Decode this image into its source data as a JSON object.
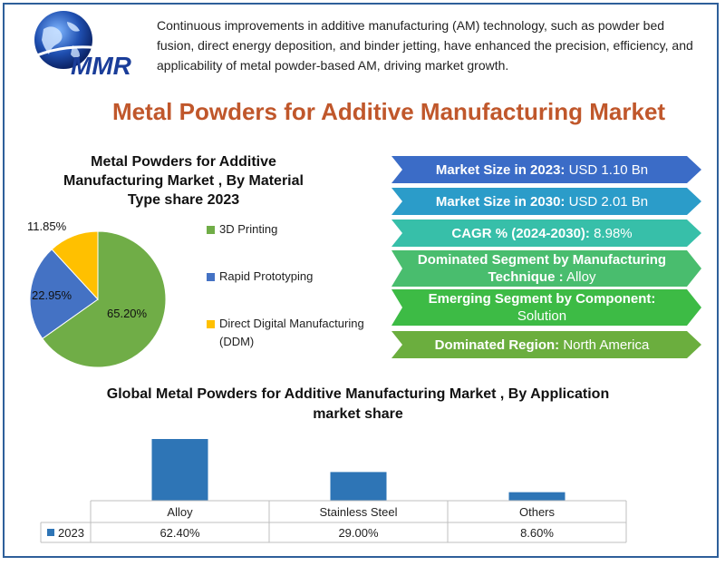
{
  "logo": {
    "text": "MMR"
  },
  "intro_text": "Continuous improvements in additive manufacturing (AM) technology, such as powder bed fusion, direct energy deposition, and binder jetting, have enhanced the precision, efficiency, and applicability of metal powder-based AM, driving market growth.",
  "main_title": "Metal Powders for Additive Manufacturing Market",
  "colors": {
    "title": "#c0572b",
    "green": "#70ad47",
    "blue": "#4472c4",
    "yellow": "#ffc000",
    "bar": "#2e75b6"
  },
  "pie": {
    "title": "Metal Powders for Additive Manufacturing Market , By Material Type share 2023",
    "labels": [
      "65.20%",
      "22.95%",
      "11.85%"
    ],
    "legend": [
      "3D Printing",
      "Rapid Prototyping",
      "Direct Digital Manufacturing (DDM)"
    ]
  },
  "banners": [
    {
      "label": "Market Size in 2023:",
      "value": "USD 1.10 Bn"
    },
    {
      "label": "Market Size in 2030:",
      "value": "USD 2.01 Bn"
    },
    {
      "label": "CAGR % (2024-2030):",
      "value": "8.98%"
    },
    {
      "label": "Dominated Segment by Manufacturing Technique :",
      "value": "Alloy"
    },
    {
      "label": "Emerging Segment by Component:",
      "value": "Solution"
    },
    {
      "label": "Dominated Region:",
      "value": "North America"
    }
  ],
  "bar": {
    "title": "Global Metal Powders for Additive Manufacturing Market , By Application market share",
    "series_name": "2023",
    "value_labels": [
      "62.40%",
      "29.00%",
      "8.60%"
    ]
  },
  "chart_data": [
    {
      "type": "pie",
      "title": "Metal Powders for Additive Manufacturing Market , By Material Type share 2023",
      "categories": [
        "3D Printing",
        "Rapid Prototyping",
        "Direct Digital Manufacturing (DDM)"
      ],
      "values": [
        65.2,
        22.95,
        11.85
      ],
      "legend": "right"
    },
    {
      "type": "bar",
      "title": "Global Metal Powders for Additive Manufacturing Market , By Application market share",
      "categories": [
        "Alloy",
        "Stainless Steel",
        "Others"
      ],
      "series": [
        {
          "name": "2023",
          "values": [
            62.4,
            29.0,
            8.6
          ]
        }
      ],
      "ylim": [
        0,
        70
      ],
      "grid": false,
      "legend": "data table"
    }
  ]
}
